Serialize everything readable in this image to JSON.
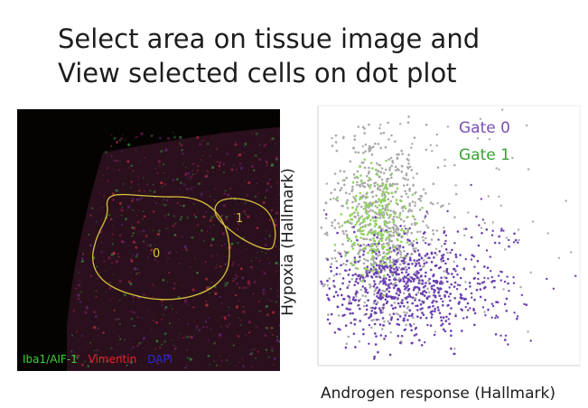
{
  "slide": {
    "title_line1": "Select area on tissue image and",
    "title_line2": "View selected cells on dot plot"
  },
  "tissue_image": {
    "background_color": "#050302",
    "legend": [
      {
        "label": "Iba1/AIF-1",
        "color": "#3fd23a"
      },
      {
        "label": "Vimentin",
        "color": "#e8262a"
      },
      {
        "label": "DAPI",
        "color": "#2a2ad8"
      }
    ],
    "gates": [
      {
        "label": "0",
        "color": "#d8c23c"
      },
      {
        "label": "1",
        "color": "#d8c23c"
      }
    ]
  },
  "dot_plot": {
    "xlabel": "Androgen response (Hallmark)",
    "ylabel": "Hypoxia (Hallmark)",
    "legend": [
      {
        "label": "Gate 0",
        "color": "#7a4fb5"
      },
      {
        "label": "Gate 1",
        "color": "#3aa132"
      }
    ],
    "colors": {
      "background_cells": "#a9a9a9",
      "gate0": "#6a3fb0",
      "gate1": "#8fd45a"
    }
  }
}
